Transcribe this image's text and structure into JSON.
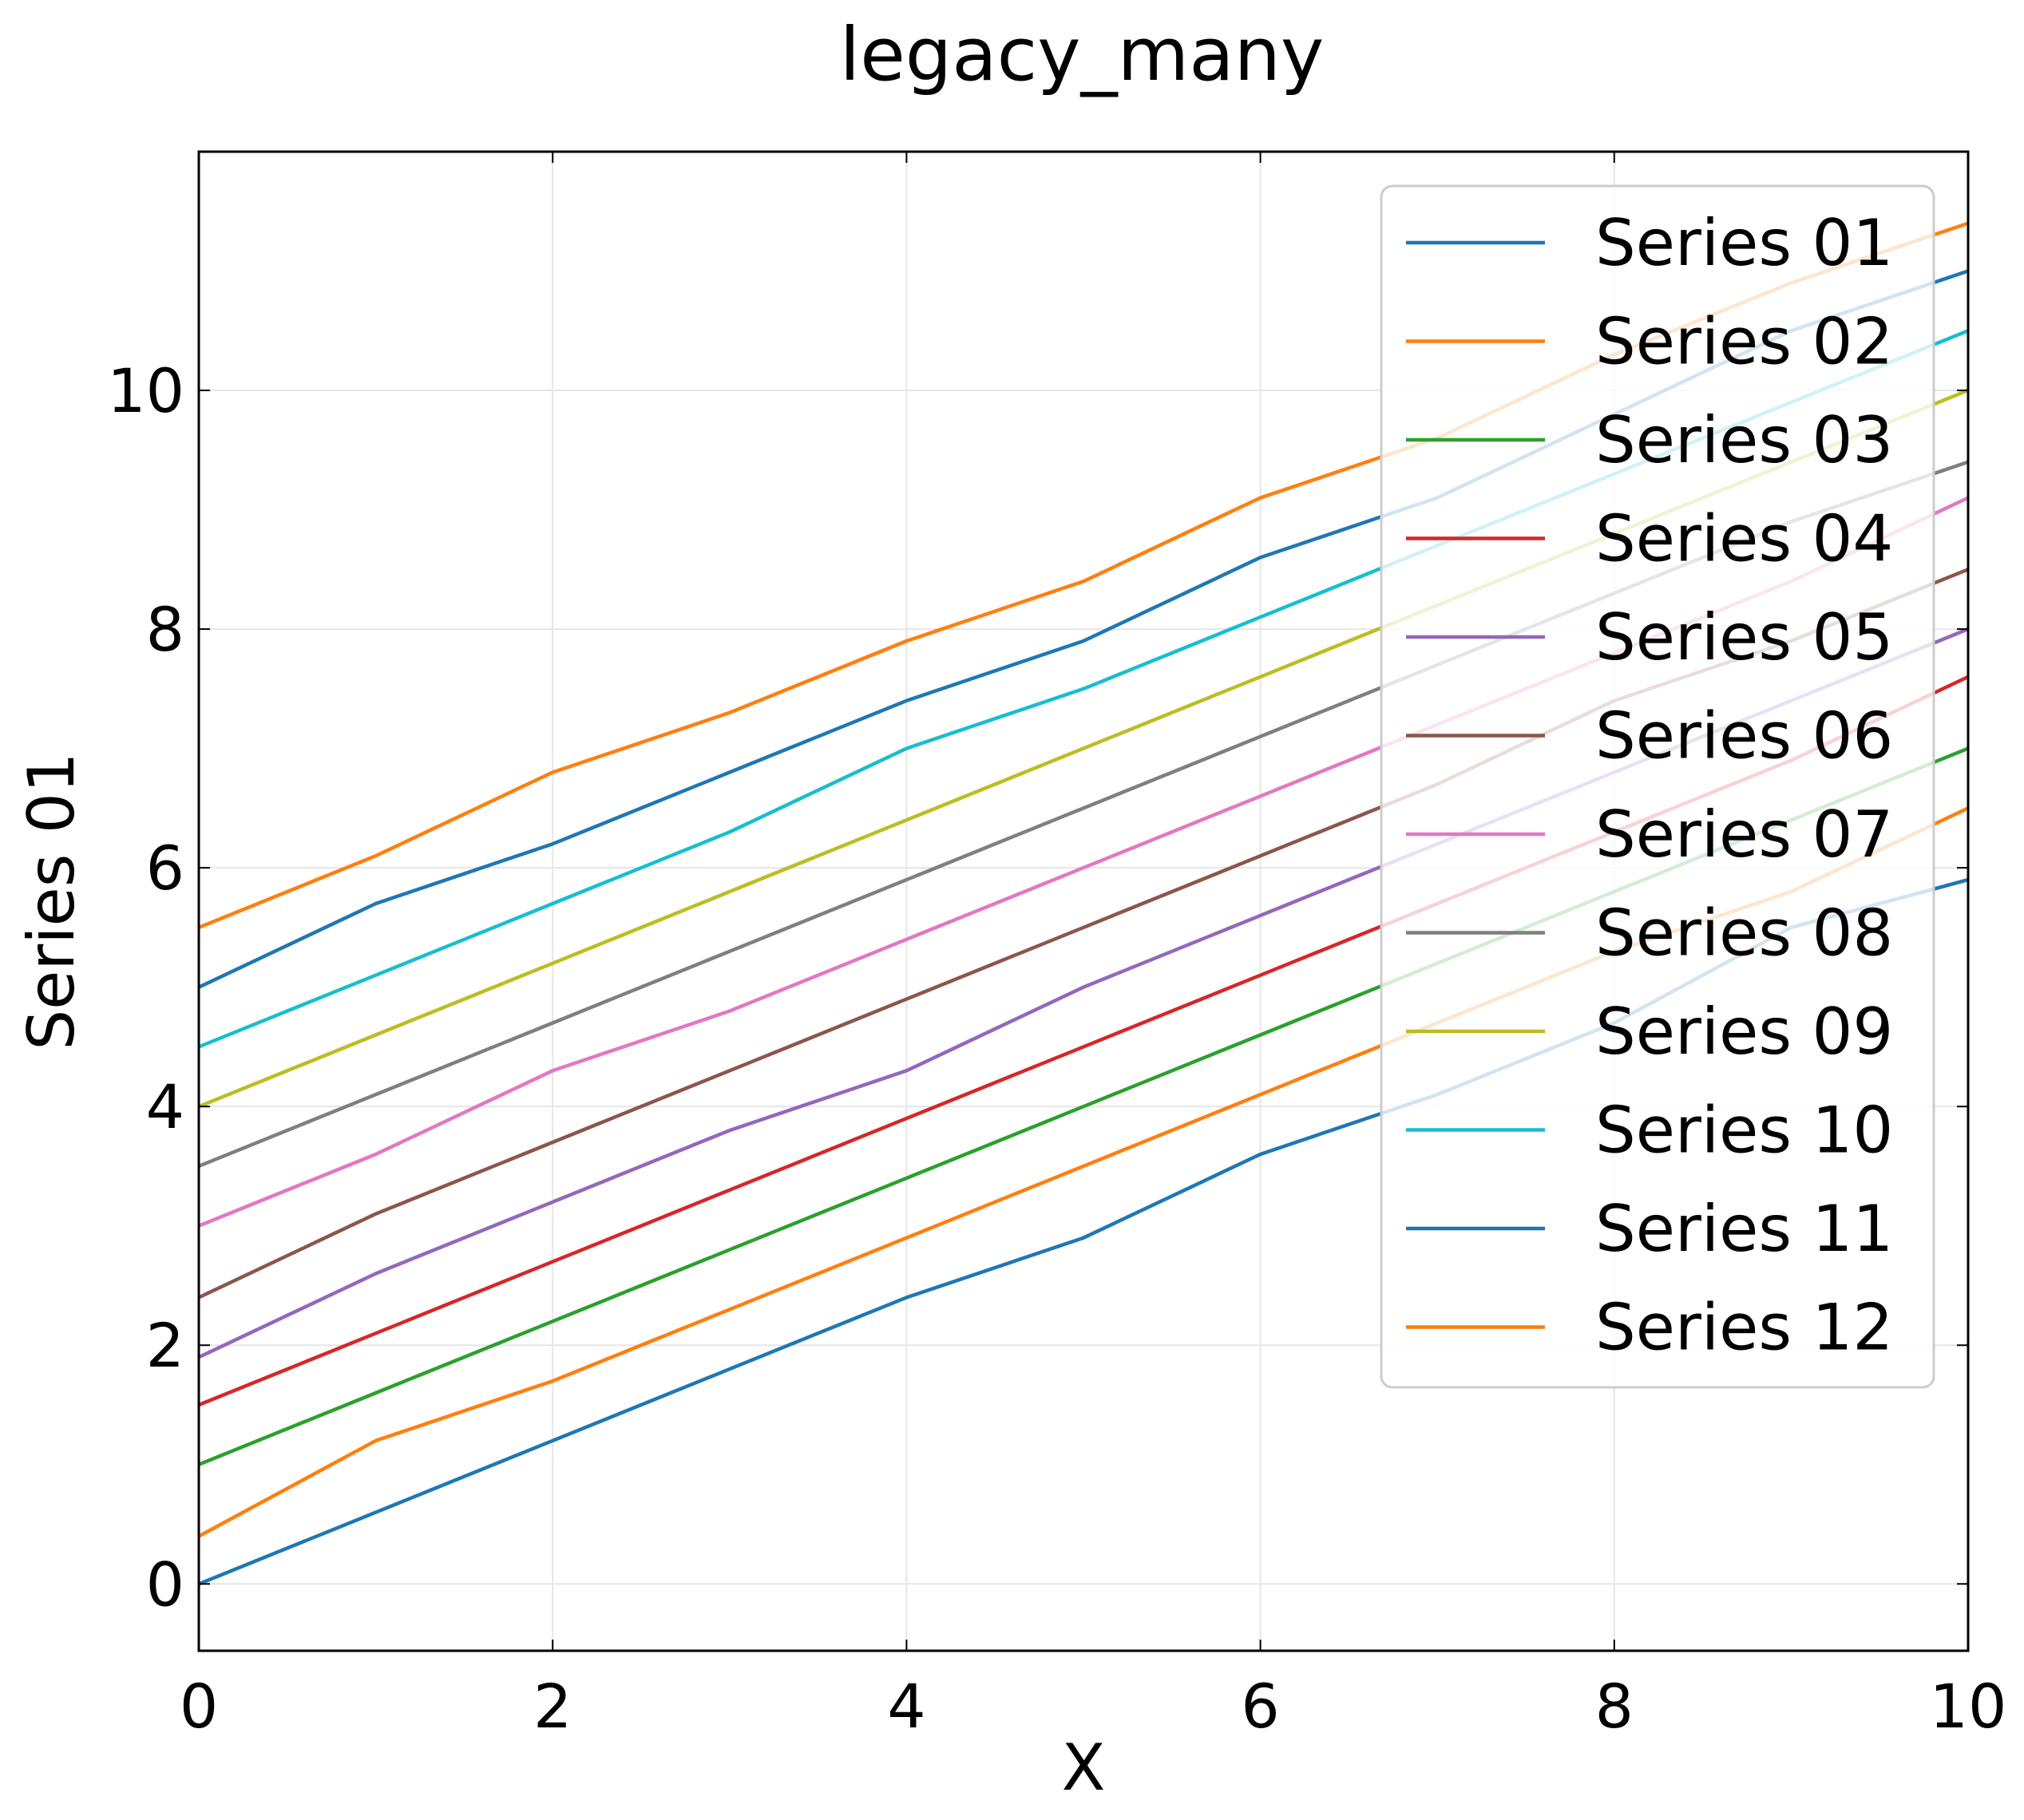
{
  "chart_data": {
    "type": "line",
    "title": "legacy_many",
    "xlabel": "X",
    "ylabel": "Series 01",
    "xlim": [
      0,
      10
    ],
    "ylim": [
      -0.56,
      12.0
    ],
    "xticks": [
      "0",
      "2",
      "4",
      "6",
      "8",
      "10"
    ],
    "yticks": [
      "0",
      "2",
      "4",
      "6",
      "8",
      "10"
    ],
    "xtick_values": [
      0,
      2,
      4,
      6,
      8,
      10
    ],
    "ytick_values": [
      0,
      2,
      4,
      6,
      8,
      10
    ],
    "grid": true,
    "legend_position": "top-right",
    "x": [
      0,
      1,
      2,
      3,
      4,
      5,
      6,
      7,
      8,
      9,
      10
    ],
    "series": [
      {
        "name": "Series 01",
        "color": "#1f77b4",
        "values": [
          5.0,
          5.7,
          6.2,
          6.8,
          7.4,
          7.9,
          8.6,
          9.1,
          9.8,
          10.5,
          11.0
        ]
      },
      {
        "name": "Series 02",
        "color": "#ff7f0e",
        "values": [
          5.5,
          6.1,
          6.8,
          7.3,
          7.9,
          8.4,
          9.1,
          9.6,
          10.3,
          10.9,
          11.4
        ]
      },
      {
        "name": "Series 03",
        "color": "#2ca02c",
        "values": [
          1.0,
          1.6,
          2.2,
          2.8,
          3.4,
          4.0,
          4.6,
          5.2,
          5.8,
          6.4,
          7.0
        ]
      },
      {
        "name": "Series 04",
        "color": "#d62728",
        "values": [
          1.5,
          2.1,
          2.7,
          3.3,
          3.9,
          4.5,
          5.1,
          5.7,
          6.3,
          6.9,
          7.6
        ]
      },
      {
        "name": "Series 05",
        "color": "#9467bd",
        "values": [
          1.9,
          2.6,
          3.2,
          3.8,
          4.3,
          5.0,
          5.6,
          6.2,
          6.8,
          7.4,
          8.0
        ]
      },
      {
        "name": "Series 06",
        "color": "#8c564b",
        "values": [
          2.4,
          3.1,
          3.7,
          4.3,
          4.9,
          5.5,
          6.1,
          6.7,
          7.4,
          7.9,
          8.5
        ]
      },
      {
        "name": "Series 07",
        "color": "#e377c2",
        "values": [
          3.0,
          3.6,
          4.3,
          4.8,
          5.4,
          6.0,
          6.6,
          7.2,
          7.8,
          8.4,
          9.1
        ]
      },
      {
        "name": "Series 08",
        "color": "#7f7f7f",
        "values": [
          3.5,
          4.1,
          4.7,
          5.3,
          5.9,
          6.5,
          7.1,
          7.7,
          8.3,
          8.9,
          9.4
        ]
      },
      {
        "name": "Series 09",
        "color": "#bcbd22",
        "values": [
          4.0,
          4.6,
          5.2,
          5.8,
          6.4,
          7.0,
          7.6,
          8.2,
          8.8,
          9.4,
          10.0
        ]
      },
      {
        "name": "Series 10",
        "color": "#17becf",
        "values": [
          4.5,
          5.1,
          5.7,
          6.3,
          7.0,
          7.5,
          8.1,
          8.7,
          9.3,
          9.9,
          10.5
        ]
      },
      {
        "name": "Series 11",
        "color": "#1f77b4",
        "values": [
          0.0,
          0.6,
          1.2,
          1.8,
          2.4,
          2.9,
          3.6,
          4.1,
          4.7,
          5.5,
          5.9
        ]
      },
      {
        "name": "Series 12",
        "color": "#ff7f0e",
        "values": [
          0.4,
          1.2,
          1.7,
          2.3,
          2.9,
          3.5,
          4.1,
          4.7,
          5.3,
          5.8,
          6.5
        ]
      }
    ]
  }
}
